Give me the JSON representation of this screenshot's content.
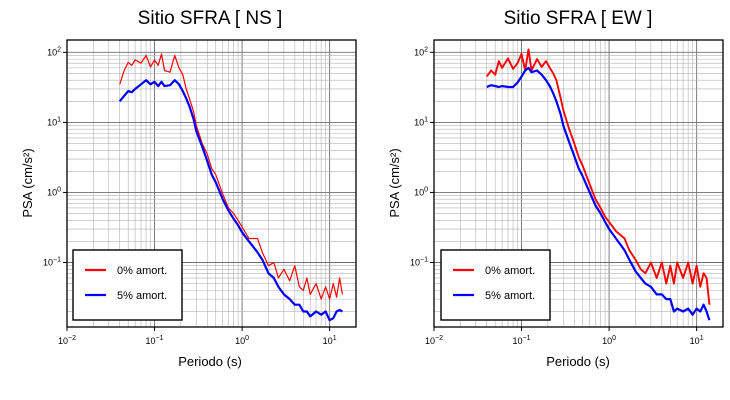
{
  "chart_data": [
    {
      "type": "line",
      "title": "Sitio SFRA [ NS ]",
      "xlabel": "Periodo (s)",
      "ylabel": "PSA (cm/s²)",
      "xscale": "log",
      "yscale": "log",
      "xlim": [
        0.01,
        20
      ],
      "ylim": [
        0.012,
        150
      ],
      "grid": true,
      "legend_position": "lower-left",
      "x_ticks": [
        {
          "base": "10",
          "exp": "−2"
        },
        {
          "base": "10",
          "exp": "−1"
        },
        {
          "base": "10",
          "exp": "0"
        },
        {
          "base": "10",
          "exp": "1"
        }
      ],
      "y_ticks": [
        {
          "base": "10",
          "exp": "−1"
        },
        {
          "base": "10",
          "exp": "0"
        },
        {
          "base": "10",
          "exp": "1"
        },
        {
          "base": "10",
          "exp": "2"
        }
      ],
      "series": [
        {
          "name": "0% amort.",
          "color": "#ff0000",
          "x": [
            0.04,
            0.045,
            0.05,
            0.055,
            0.06,
            0.07,
            0.08,
            0.09,
            0.1,
            0.11,
            0.12,
            0.13,
            0.15,
            0.17,
            0.19,
            0.21,
            0.23,
            0.25,
            0.28,
            0.3,
            0.35,
            0.4,
            0.45,
            0.5,
            0.6,
            0.7,
            0.8,
            0.9,
            1.0,
            1.2,
            1.5,
            1.7,
            2.0,
            2.3,
            2.6,
            3.0,
            3.5,
            4.0,
            4.5,
            5.0,
            5.5,
            6.0,
            7.0,
            8.0,
            9.0,
            10.0,
            11.0,
            12.0,
            13.0,
            14.0
          ],
          "values": [
            35,
            55,
            72,
            65,
            78,
            70,
            90,
            62,
            78,
            65,
            95,
            55,
            52,
            90,
            60,
            48,
            30,
            22,
            14,
            9,
            5,
            3.5,
            2.2,
            1.8,
            0.95,
            0.6,
            0.5,
            0.4,
            0.32,
            0.22,
            0.22,
            0.14,
            0.09,
            0.1,
            0.06,
            0.08,
            0.055,
            0.09,
            0.045,
            0.04,
            0.06,
            0.035,
            0.05,
            0.03,
            0.045,
            0.03,
            0.05,
            0.032,
            0.06,
            0.035
          ]
        },
        {
          "name": "5% amort.",
          "color": "#0000ff",
          "x": [
            0.04,
            0.045,
            0.05,
            0.055,
            0.06,
            0.07,
            0.08,
            0.09,
            0.1,
            0.11,
            0.12,
            0.13,
            0.15,
            0.17,
            0.19,
            0.21,
            0.23,
            0.25,
            0.28,
            0.3,
            0.35,
            0.4,
            0.45,
            0.5,
            0.6,
            0.7,
            0.8,
            0.9,
            1.0,
            1.2,
            1.5,
            1.7,
            2.0,
            2.3,
            2.6,
            3.0,
            3.5,
            4.0,
            4.5,
            5.0,
            5.5,
            6.0,
            7.0,
            8.0,
            9.0,
            10.0,
            11.0,
            12.0,
            13.0,
            14.0
          ],
          "values": [
            20,
            24,
            28,
            27,
            30,
            35,
            40,
            35,
            38,
            33,
            38,
            33,
            34,
            40,
            35,
            28,
            22,
            17,
            11,
            7.5,
            4.5,
            2.8,
            1.8,
            1.4,
            0.8,
            0.55,
            0.42,
            0.34,
            0.27,
            0.2,
            0.14,
            0.11,
            0.07,
            0.06,
            0.045,
            0.035,
            0.03,
            0.025,
            0.025,
            0.02,
            0.02,
            0.017,
            0.02,
            0.018,
            0.02,
            0.015,
            0.016,
            0.02,
            0.021,
            0.02
          ]
        }
      ]
    },
    {
      "type": "line",
      "title": "Sitio SFRA [ EW ]",
      "xlabel": "Periodo (s)",
      "ylabel": "PSA (cm/s²)",
      "xscale": "log",
      "yscale": "log",
      "xlim": [
        0.01,
        20
      ],
      "ylim": [
        0.012,
        150
      ],
      "grid": true,
      "legend_position": "lower-left",
      "x_ticks": [
        {
          "base": "10",
          "exp": "−2"
        },
        {
          "base": "10",
          "exp": "−1"
        },
        {
          "base": "10",
          "exp": "0"
        },
        {
          "base": "10",
          "exp": "1"
        }
      ],
      "y_ticks": [
        {
          "base": "10",
          "exp": "−1"
        },
        {
          "base": "10",
          "exp": "0"
        },
        {
          "base": "10",
          "exp": "1"
        },
        {
          "base": "10",
          "exp": "2"
        }
      ],
      "series": [
        {
          "name": "0% amort.",
          "color": "#ff0000",
          "x": [
            0.04,
            0.045,
            0.05,
            0.055,
            0.06,
            0.07,
            0.08,
            0.09,
            0.1,
            0.11,
            0.12,
            0.13,
            0.15,
            0.17,
            0.19,
            0.21,
            0.23,
            0.25,
            0.28,
            0.3,
            0.35,
            0.4,
            0.45,
            0.5,
            0.6,
            0.7,
            0.8,
            0.9,
            1.0,
            1.2,
            1.5,
            1.7,
            2.0,
            2.3,
            2.6,
            3.0,
            3.5,
            4.0,
            4.5,
            5.0,
            5.5,
            6.0,
            7.0,
            8.0,
            9.0,
            10.0,
            11.0,
            12.0,
            13.0,
            14.0
          ],
          "values": [
            45,
            55,
            48,
            75,
            60,
            82,
            58,
            70,
            95,
            55,
            110,
            55,
            80,
            62,
            75,
            60,
            50,
            40,
            22,
            15,
            8,
            5,
            3.2,
            2.4,
            1.3,
            0.8,
            0.6,
            0.45,
            0.38,
            0.28,
            0.22,
            0.15,
            0.11,
            0.08,
            0.07,
            0.1,
            0.06,
            0.1,
            0.05,
            0.09,
            0.05,
            0.1,
            0.06,
            0.1,
            0.05,
            0.09,
            0.045,
            0.07,
            0.06,
            0.025
          ]
        },
        {
          "name": "5% amort.",
          "color": "#0000ff",
          "x": [
            0.04,
            0.045,
            0.05,
            0.055,
            0.06,
            0.07,
            0.08,
            0.09,
            0.1,
            0.11,
            0.12,
            0.13,
            0.15,
            0.17,
            0.19,
            0.21,
            0.23,
            0.25,
            0.28,
            0.3,
            0.35,
            0.4,
            0.45,
            0.5,
            0.6,
            0.7,
            0.8,
            0.9,
            1.0,
            1.2,
            1.5,
            1.7,
            2.0,
            2.3,
            2.6,
            3.0,
            3.5,
            4.0,
            4.5,
            5.0,
            5.5,
            6.0,
            7.0,
            8.0,
            9.0,
            10.0,
            11.0,
            12.0,
            13.0,
            14.0
          ],
          "values": [
            32,
            34,
            33,
            32,
            33,
            32,
            32,
            37,
            45,
            55,
            60,
            52,
            55,
            48,
            40,
            33,
            26,
            20,
            13,
            9,
            5.2,
            3.3,
            2.2,
            1.7,
            1.0,
            0.65,
            0.5,
            0.38,
            0.3,
            0.22,
            0.15,
            0.11,
            0.075,
            0.06,
            0.05,
            0.045,
            0.035,
            0.035,
            0.03,
            0.03,
            0.02,
            0.022,
            0.02,
            0.022,
            0.018,
            0.022,
            0.02,
            0.025,
            0.02,
            0.015
          ]
        }
      ]
    }
  ]
}
